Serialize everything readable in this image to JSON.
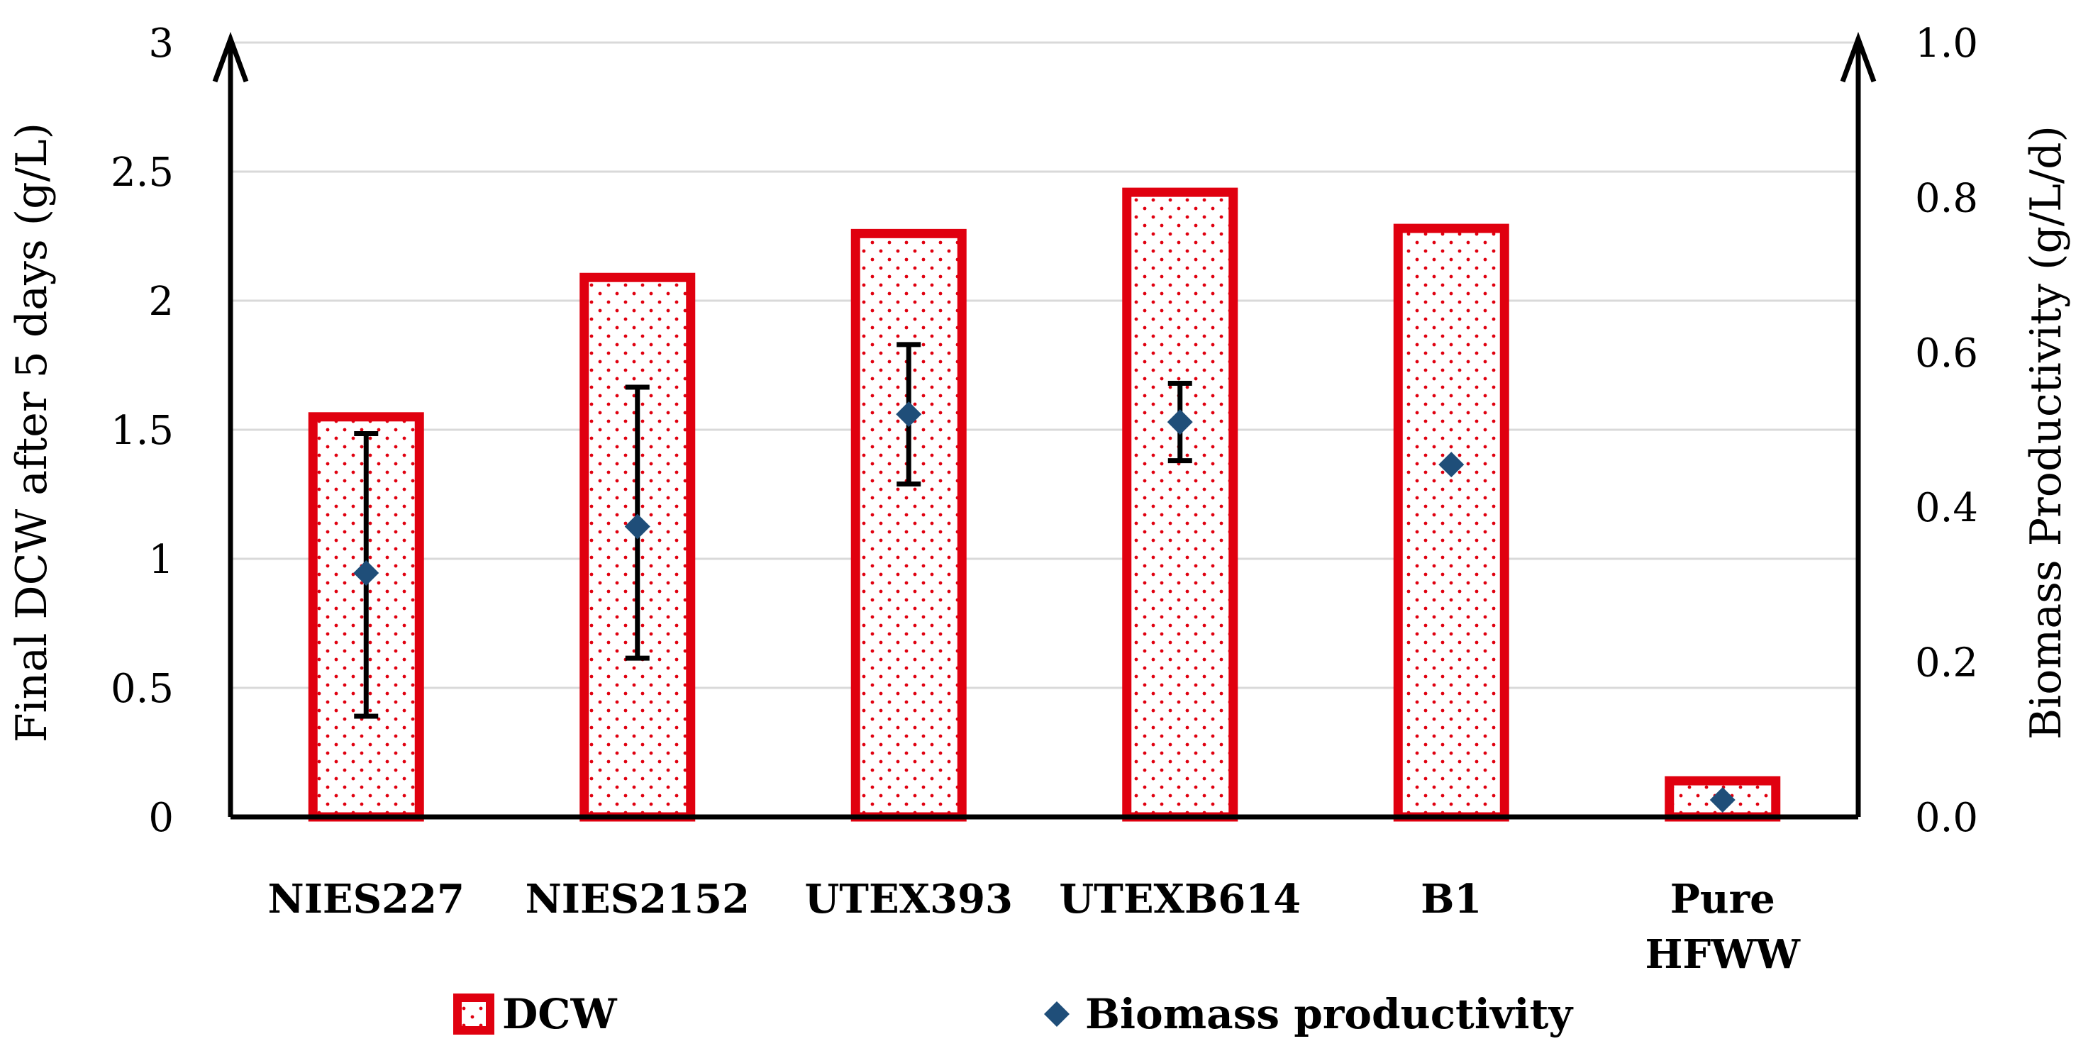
{
  "chart_data": {
    "type": "bar",
    "categories": [
      "NIES227",
      "NIES2152",
      "UTEX393",
      "UTEXB614",
      "B1",
      "Pure HFWW"
    ],
    "category_lines": [
      [
        "NIES227"
      ],
      [
        "NIES2152"
      ],
      [
        "UTEX393"
      ],
      [
        "UTEXB614"
      ],
      [
        "B1"
      ],
      [
        "Pure",
        "HFWW"
      ]
    ],
    "series": [
      {
        "name": "DCW",
        "axis": "left",
        "type": "bar",
        "values": [
          1.55,
          2.09,
          2.26,
          2.42,
          2.28,
          0.14
        ]
      },
      {
        "name": "Biomass productivity",
        "axis": "right",
        "type": "scatter",
        "values": [
          0.315,
          0.375,
          0.52,
          0.51,
          0.455,
          0.022
        ],
        "error_low": [
          0.13,
          0.205,
          0.43,
          0.46,
          0.45,
          0.022
        ],
        "error_high": [
          0.495,
          0.555,
          0.61,
          0.56,
          0.46,
          0.022
        ]
      }
    ],
    "ylabel": "Final DCW after 5 days (g/L)",
    "y2label": "Biomass Productivity (g/L/d)",
    "ylim": [
      0,
      3
    ],
    "y2lim": [
      0,
      1.0
    ],
    "yticks": [
      "0",
      "0.5",
      "1",
      "1.5",
      "2",
      "2.5",
      "3"
    ],
    "y2ticks": [
      "0.0",
      "0.2",
      "0.4",
      "0.6",
      "0.8",
      "1.0"
    ],
    "legend": [
      "DCW",
      "Biomass productivity"
    ],
    "legend_position": "bottom",
    "grid": true,
    "colors": {
      "bar": "#e0000f",
      "marker": "#1f4e79"
    }
  }
}
